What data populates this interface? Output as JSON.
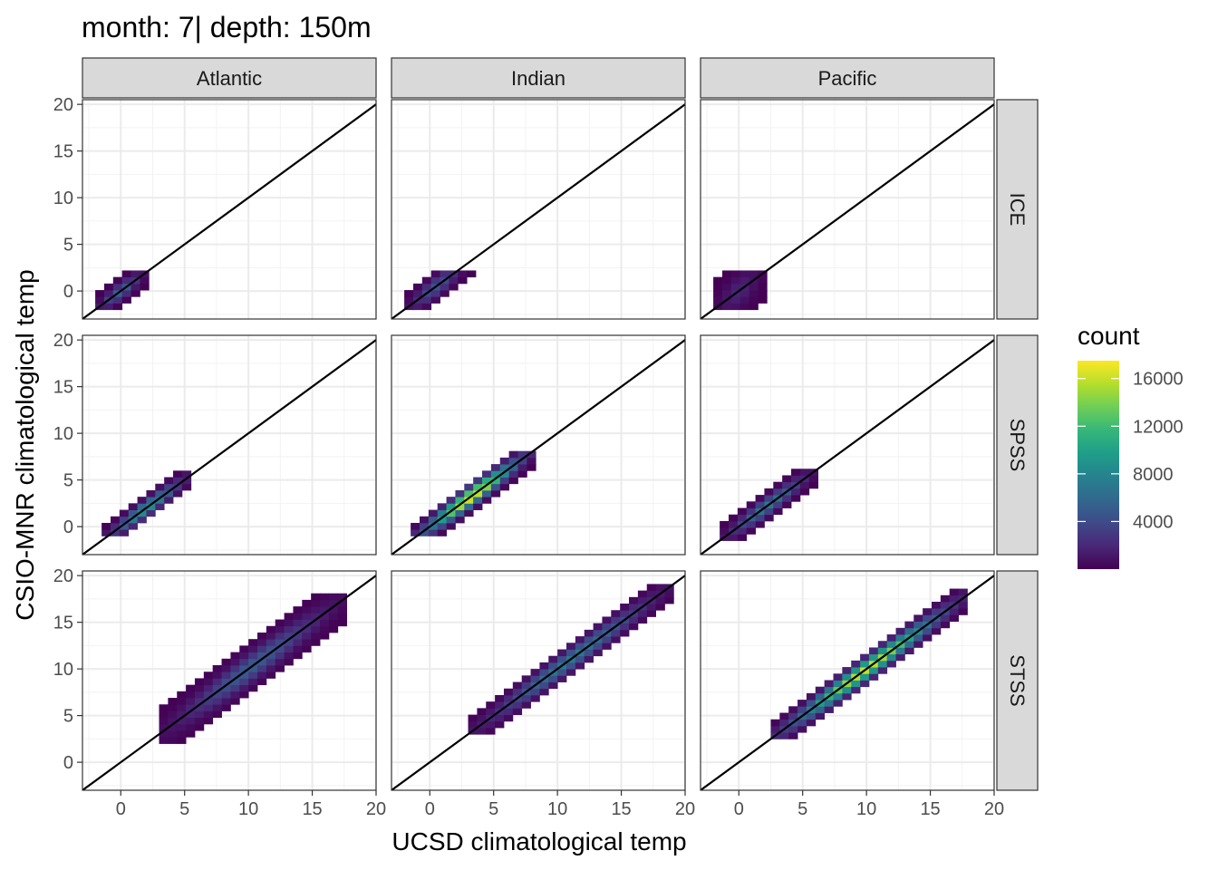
{
  "chart_data": {
    "type": "heatmap",
    "title": "month: 7| depth: 150m",
    "xlabel": "UCSD climatological temp",
    "ylabel": "CSIO-MNR climatological temp",
    "xlim": [
      -3,
      20
    ],
    "ylim": [
      -3,
      20.5
    ],
    "x_ticks": [
      0,
      5,
      10,
      15,
      20
    ],
    "y_ticks": [
      0,
      5,
      10,
      15,
      20
    ],
    "column_facets": [
      "Atlantic",
      "Indian",
      "Pacific"
    ],
    "row_facets": [
      "ICE",
      "SPSS",
      "STSS"
    ],
    "reference_line": "y = x",
    "grid": true,
    "legend": {
      "title": "count",
      "position": "right",
      "ticks": [
        4000,
        8000,
        12000,
        16000
      ],
      "tick_labels": [
        "4000",
        "8000",
        "12000",
        "16000"
      ],
      "min": 0,
      "max": 17500,
      "colors": [
        "#440154",
        "#482878",
        "#3e4a89",
        "#31688e",
        "#26828e",
        "#1f9e89",
        "#35b779",
        "#6ece58",
        "#b5de2b",
        "#fde725"
      ]
    },
    "panels": [
      {
        "column": "Atlantic",
        "row": "ICE",
        "x_range": [
          -2,
          2
        ],
        "y_range": [
          -2,
          2
        ],
        "peak_count": 5500,
        "band_width": 1.2
      },
      {
        "column": "Indian",
        "row": "ICE",
        "x_range": [
          -2,
          3
        ],
        "y_range": [
          -2,
          2
        ],
        "peak_count": 4500,
        "band_width": 1.5
      },
      {
        "column": "Pacific",
        "row": "ICE",
        "x_range": [
          -2,
          2
        ],
        "y_range": [
          -2,
          2
        ],
        "peak_count": 1800,
        "band_width": 2.5
      },
      {
        "column": "Atlantic",
        "row": "SPSS",
        "x_range": [
          -1.5,
          5.5
        ],
        "y_range": [
          -1,
          6
        ],
        "peak_count": 9000,
        "band_width": 1.2
      },
      {
        "column": "Indian",
        "row": "SPSS",
        "x_range": [
          -1.5,
          8
        ],
        "y_range": [
          -1,
          8
        ],
        "peak_count": 17000,
        "band_width": 1.4
      },
      {
        "column": "Pacific",
        "row": "SPSS",
        "x_range": [
          -1.5,
          6
        ],
        "y_range": [
          -1.5,
          6
        ],
        "peak_count": 7000,
        "band_width": 1.3
      },
      {
        "column": "Atlantic",
        "row": "STSS",
        "x_range": [
          3,
          17.5
        ],
        "y_range": [
          2,
          18
        ],
        "peak_count": 5000,
        "band_width": 2.2
      },
      {
        "column": "Indian",
        "row": "STSS",
        "x_range": [
          3,
          19
        ],
        "y_range": [
          3,
          18.5
        ],
        "peak_count": 7000,
        "band_width": 1.6
      },
      {
        "column": "Pacific",
        "row": "STSS",
        "x_range": [
          2.5,
          17.5
        ],
        "y_range": [
          2.5,
          18
        ],
        "peak_count": 16000,
        "band_width": 1.5
      }
    ]
  }
}
